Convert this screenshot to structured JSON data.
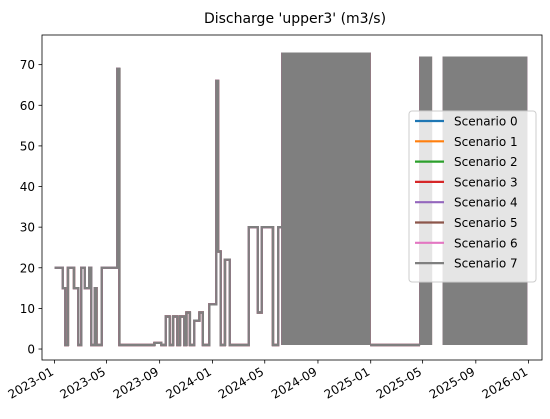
{
  "chart_data": {
    "type": "line",
    "title": "Discharge 'upper3' (m3/s)",
    "xlabel": "",
    "ylabel": "",
    "x_ticks": [
      "2023-01",
      "2023-05",
      "2023-09",
      "2024-01",
      "2024-05",
      "2024-09",
      "2025-01",
      "2025-05",
      "2025-09",
      "2026-01"
    ],
    "y_ticks": [
      0,
      10,
      20,
      30,
      40,
      50,
      60,
      70
    ],
    "xlim": [
      "2022-12-03",
      "2026-02-01"
    ],
    "ylim": [
      -2.7,
      77.3
    ],
    "legend_position": "center-right",
    "grid": false,
    "series_colors": [
      "#1f77b4",
      "#ff7f0e",
      "#2ca02c",
      "#d62728",
      "#9467bd",
      "#8c564b",
      "#e377c2",
      "#7f7f7f"
    ],
    "series": [
      {
        "name": "Scenario 0"
      },
      {
        "name": "Scenario 1"
      },
      {
        "name": "Scenario 2"
      },
      {
        "name": "Scenario 3"
      },
      {
        "name": "Scenario 4"
      },
      {
        "name": "Scenario 5"
      },
      {
        "name": "Scenario 6"
      },
      {
        "name": "Scenario 7"
      }
    ],
    "step_profile": [
      [
        "2023-01-01",
        20
      ],
      [
        "2023-01-20",
        20
      ],
      [
        "2023-01-20",
        15
      ],
      [
        "2023-01-26",
        15
      ],
      [
        "2023-01-26",
        1
      ],
      [
        "2023-02-01",
        1
      ],
      [
        "2023-02-01",
        20
      ],
      [
        "2023-02-15",
        20
      ],
      [
        "2023-02-15",
        15
      ],
      [
        "2023-02-25",
        15
      ],
      [
        "2023-02-25",
        1
      ],
      [
        "2023-03-04",
        1
      ],
      [
        "2023-03-04",
        20
      ],
      [
        "2023-03-12",
        20
      ],
      [
        "2023-03-12",
        15
      ],
      [
        "2023-03-22",
        15
      ],
      [
        "2023-03-22",
        20
      ],
      [
        "2023-03-27",
        20
      ],
      [
        "2023-03-27",
        1
      ],
      [
        "2023-04-04",
        1
      ],
      [
        "2023-04-04",
        15
      ],
      [
        "2023-04-08",
        15
      ],
      [
        "2023-04-08",
        1
      ],
      [
        "2023-04-20",
        1
      ],
      [
        "2023-04-20",
        20
      ],
      [
        "2023-05-26",
        20
      ],
      [
        "2023-05-26",
        69
      ],
      [
        "2023-05-31",
        69
      ],
      [
        "2023-05-31",
        1
      ],
      [
        "2023-08-20",
        1
      ],
      [
        "2023-08-20",
        1.5
      ],
      [
        "2023-09-05",
        1.5
      ],
      [
        "2023-09-05",
        1
      ],
      [
        "2023-09-15",
        1
      ],
      [
        "2023-09-15",
        8
      ],
      [
        "2023-09-24",
        8
      ],
      [
        "2023-09-24",
        1
      ],
      [
        "2023-10-02",
        1
      ],
      [
        "2023-10-02",
        8
      ],
      [
        "2023-10-12",
        8
      ],
      [
        "2023-10-12",
        1
      ],
      [
        "2023-10-18",
        1
      ],
      [
        "2023-10-18",
        8
      ],
      [
        "2023-10-28",
        8
      ],
      [
        "2023-10-28",
        1
      ],
      [
        "2023-11-02",
        1
      ],
      [
        "2023-11-02",
        9
      ],
      [
        "2023-11-10",
        9
      ],
      [
        "2023-11-10",
        1
      ],
      [
        "2023-11-20",
        1
      ],
      [
        "2023-11-20",
        7
      ],
      [
        "2023-12-02",
        7
      ],
      [
        "2023-12-02",
        9
      ],
      [
        "2023-12-10",
        9
      ],
      [
        "2023-12-10",
        1
      ],
      [
        "2023-12-25",
        1
      ],
      [
        "2023-12-25",
        11
      ],
      [
        "2024-01-10",
        11
      ],
      [
        "2024-01-10",
        66
      ],
      [
        "2024-01-14",
        66
      ],
      [
        "2024-01-14",
        24
      ],
      [
        "2024-01-20",
        24
      ],
      [
        "2024-01-20",
        1
      ],
      [
        "2024-01-30",
        1
      ],
      [
        "2024-01-30",
        22
      ],
      [
        "2024-02-10",
        22
      ],
      [
        "2024-02-10",
        1
      ],
      [
        "2024-03-25",
        1
      ],
      [
        "2024-03-25",
        30
      ],
      [
        "2024-04-15",
        30
      ],
      [
        "2024-04-15",
        9
      ],
      [
        "2024-04-24",
        9
      ],
      [
        "2024-04-24",
        30
      ],
      [
        "2024-05-20",
        30
      ],
      [
        "2024-05-20",
        1
      ],
      [
        "2024-06-01",
        1
      ],
      [
        "2024-06-01",
        30
      ],
      [
        "2024-06-10",
        30
      ]
    ],
    "flat_profile": [
      [
        "2024-12-31",
        1
      ],
      [
        "2025-04-25",
        1
      ]
    ],
    "oscillation_blocks": [
      {
        "start": "2024-06-10",
        "end": "2024-09-10",
        "high": 73,
        "low": 1
      },
      {
        "start": "2024-09-10",
        "end": "2024-12-31",
        "high": 73,
        "low": 1
      },
      {
        "start": "2025-04-25",
        "end": "2025-05-23",
        "high": 72,
        "low": 1
      },
      {
        "start": "2025-06-18",
        "end": "2025-12-31",
        "high": 72,
        "low": 1
      }
    ]
  }
}
